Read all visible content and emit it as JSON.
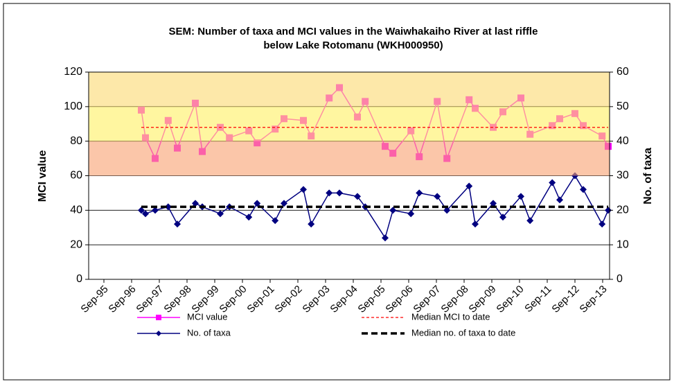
{
  "chart_data": {
    "type": "line",
    "title": [
      "SEM: Number of taxa and MCI values in the Waiwhakaiho River at last riffle",
      "below Lake Rotomanu (WKH000950)"
    ],
    "y_label": "MCI value",
    "y2_label": "No. of taxa",
    "x": [
      1997.02,
      1997.17,
      1997.52,
      1997.99,
      1998.32,
      1998.97,
      1999.22,
      1999.87,
      2000.2,
      2000.9,
      2001.2,
      2001.85,
      2002.17,
      2002.87,
      2003.15,
      2003.8,
      2004.17,
      2004.82,
      2005.1,
      2005.82,
      2006.1,
      2006.75,
      2007.05,
      2007.7,
      2008.05,
      2008.85,
      2009.07,
      2009.72,
      2010.07,
      2010.72,
      2011.05,
      2011.85,
      2012.12,
      2012.67,
      2012.97,
      2013.65,
      2013.87
    ],
    "series": [
      {
        "name": "MCI value",
        "color": "#ff00ff",
        "marker": "square",
        "values": [
          98,
          82,
          70,
          92,
          76,
          102,
          74,
          88,
          82,
          86,
          79,
          87,
          93,
          92,
          83,
          105,
          111,
          94,
          103,
          77,
          73,
          86,
          71,
          103,
          70,
          104,
          99,
          88,
          97,
          105,
          84,
          89,
          93,
          96,
          89,
          83,
          77
        ]
      },
      {
        "name": "No. of taxa",
        "color": "#000080",
        "marker": "diamond",
        "axis": "y2",
        "values": [
          20,
          19,
          20,
          21,
          16,
          22,
          21,
          19,
          21,
          18,
          22,
          17,
          22,
          26,
          16,
          25,
          25,
          24,
          21,
          12,
          20,
          19,
          25,
          24,
          20,
          27,
          16,
          22,
          18,
          24,
          17,
          28,
          23,
          30,
          26,
          16,
          20
        ]
      }
    ],
    "reference_lines": [
      {
        "name": "Median MCI to date",
        "value": 88,
        "color": "#ff0000",
        "dash": "4 3",
        "width": 1.2
      },
      {
        "name": "Median no. of taxa to date",
        "value": 21,
        "axis": "y2",
        "color": "#000000",
        "dash": "9 5",
        "width": 3.5
      }
    ],
    "bands": [
      {
        "from": 60,
        "to": 80,
        "color": "#f8a070"
      },
      {
        "from": 80,
        "to": 100,
        "color": "#fff060"
      },
      {
        "from": 100,
        "to": 120,
        "color": "#fcd870"
      }
    ],
    "xlim": [
      1995.12,
      2013.92
    ],
    "xticks": [
      {
        "value": 1995.67,
        "label": "Sep-95"
      },
      {
        "value": 1996.67,
        "label": "Sep-96"
      },
      {
        "value": 1997.67,
        "label": "Sep-97"
      },
      {
        "value": 1998.67,
        "label": "Sep-98"
      },
      {
        "value": 1999.67,
        "label": "Sep-99"
      },
      {
        "value": 2000.67,
        "label": "Sep-00"
      },
      {
        "value": 2001.67,
        "label": "Sep-01"
      },
      {
        "value": 2002.67,
        "label": "Sep-02"
      },
      {
        "value": 2003.67,
        "label": "Sep-03"
      },
      {
        "value": 2004.67,
        "label": "Sep-04"
      },
      {
        "value": 2005.67,
        "label": "Sep-05"
      },
      {
        "value": 2006.67,
        "label": "Sep-06"
      },
      {
        "value": 2007.67,
        "label": "Sep-07"
      },
      {
        "value": 2008.67,
        "label": "Sep-08"
      },
      {
        "value": 2009.67,
        "label": "Sep-09"
      },
      {
        "value": 2010.67,
        "label": "Sep-10"
      },
      {
        "value": 2011.67,
        "label": "Sep-11"
      },
      {
        "value": 2012.67,
        "label": "Sep-12"
      },
      {
        "value": 2013.67,
        "label": "Sep-13"
      }
    ],
    "ylim": [
      0,
      120
    ],
    "yticks": [
      0,
      20,
      40,
      60,
      80,
      100,
      120
    ],
    "y2lim": [
      0,
      60
    ],
    "y2ticks": [
      0,
      10,
      20,
      30,
      40,
      50,
      60
    ],
    "grid": true,
    "legend": "bottom"
  }
}
